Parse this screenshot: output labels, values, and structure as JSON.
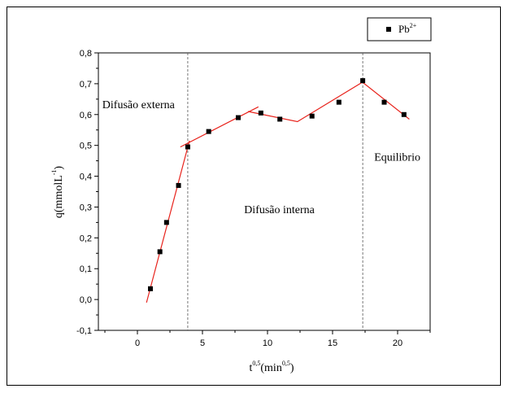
{
  "chart_data": {
    "type": "scatter",
    "title": "",
    "xlabel": "t^0,5 (min^0,5)",
    "xlabel_parts": {
      "base": "t",
      "exp1": "0,5",
      "mid": "(min",
      "exp2": "0,5",
      "end": ")"
    },
    "ylabel": "q(mmol L^-1)",
    "ylabel_parts": {
      "base": "q(mmolL",
      "exp": "-1",
      "end": ")"
    },
    "xlim": [
      -3,
      22.5
    ],
    "ylim": [
      -0.1,
      0.8
    ],
    "xticks": [
      0,
      5,
      10,
      15,
      20
    ],
    "xtick_labels": [
      "0",
      "5",
      "10",
      "15",
      "20"
    ],
    "yticks": [
      -0.1,
      0.0,
      0.1,
      0.2,
      0.3,
      0.4,
      0.5,
      0.6,
      0.7,
      0.8
    ],
    "ytick_labels": [
      "-0,1",
      "0,0",
      "0,1",
      "0,2",
      "0,3",
      "0,4",
      "0,5",
      "0,6",
      "0,7",
      "0,8"
    ],
    "series": [
      {
        "name": "Pb",
        "name_sup": "2+",
        "marker": "square",
        "color": "#000000",
        "x": [
          1.0,
          1.73,
          2.24,
          3.16,
          3.87,
          5.48,
          7.75,
          9.49,
          10.95,
          13.42,
          15.49,
          17.32,
          18.97,
          20.49
        ],
        "y": [
          0.035,
          0.155,
          0.25,
          0.37,
          0.495,
          0.545,
          0.59,
          0.605,
          0.585,
          0.595,
          0.64,
          0.71,
          0.64,
          0.6
        ]
      }
    ],
    "fit_lines": [
      {
        "color": "#e8231c",
        "points": [
          [
            0.7,
            -0.01
          ],
          [
            4.0,
            0.515
          ]
        ]
      },
      {
        "color": "#e8231c",
        "points": [
          [
            3.3,
            0.495
          ],
          [
            9.3,
            0.625
          ]
        ]
      },
      {
        "color": "#e8231c",
        "points": [
          [
            8.5,
            0.61
          ],
          [
            12.3,
            0.577
          ],
          [
            17.3,
            0.705
          ],
          [
            20.9,
            0.585
          ]
        ]
      }
    ],
    "vlines": [
      3.87,
      17.32
    ],
    "annotations": [
      {
        "text": "Difusão externa",
        "x": -2.7,
        "y": 0.62
      },
      {
        "text": "Difusão interna",
        "x": 8.2,
        "y": 0.28
      },
      {
        "text": "Equilibrio",
        "x": 18.2,
        "y": 0.45
      }
    ],
    "legend_position": "top-right",
    "grid": false
  }
}
